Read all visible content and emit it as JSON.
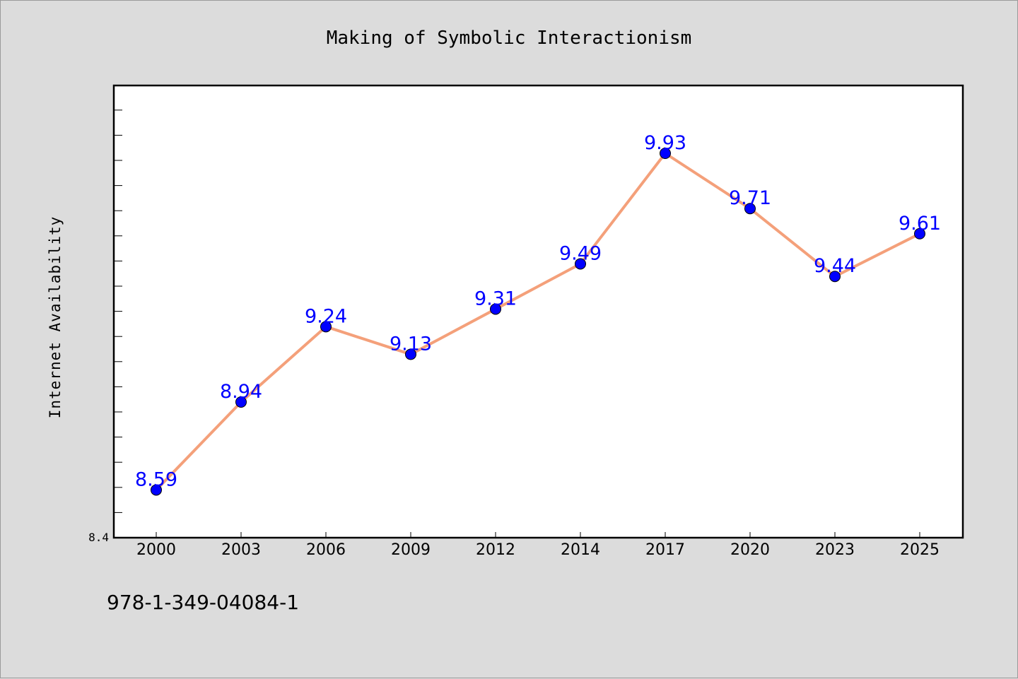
{
  "chart_data": {
    "type": "line",
    "title": "Making of Symbolic Interactionism",
    "xlabel": "",
    "ylabel": "Internet Availability",
    "categories": [
      "2000",
      "2003",
      "2006",
      "2009",
      "2012",
      "2014",
      "2017",
      "2020",
      "2023",
      "2025"
    ],
    "series": [
      {
        "values": [
          8.59,
          8.94,
          9.24,
          9.13,
          9.31,
          9.49,
          9.93,
          9.71,
          9.44,
          9.61
        ],
        "line_color": "#f4a07a",
        "marker_color": "#0000ff"
      }
    ],
    "ylim": [
      8.4,
      10.2
    ],
    "ytick_labels": [
      "8.4"
    ],
    "data_labels": [
      "8.59",
      "8.94",
      "9.24",
      "9.13",
      "9.31",
      "9.49",
      "9.93",
      "9.71",
      "9.44",
      "9.61"
    ],
    "grid": false,
    "legend": "none"
  },
  "footer": {
    "isbn": "978-1-349-04084-1"
  },
  "colors": {
    "background": "#dcdcdc",
    "plot_area": "#ffffff",
    "line": "#f4a07a",
    "marker": "#0000ff",
    "data_label": "#0000ff"
  }
}
